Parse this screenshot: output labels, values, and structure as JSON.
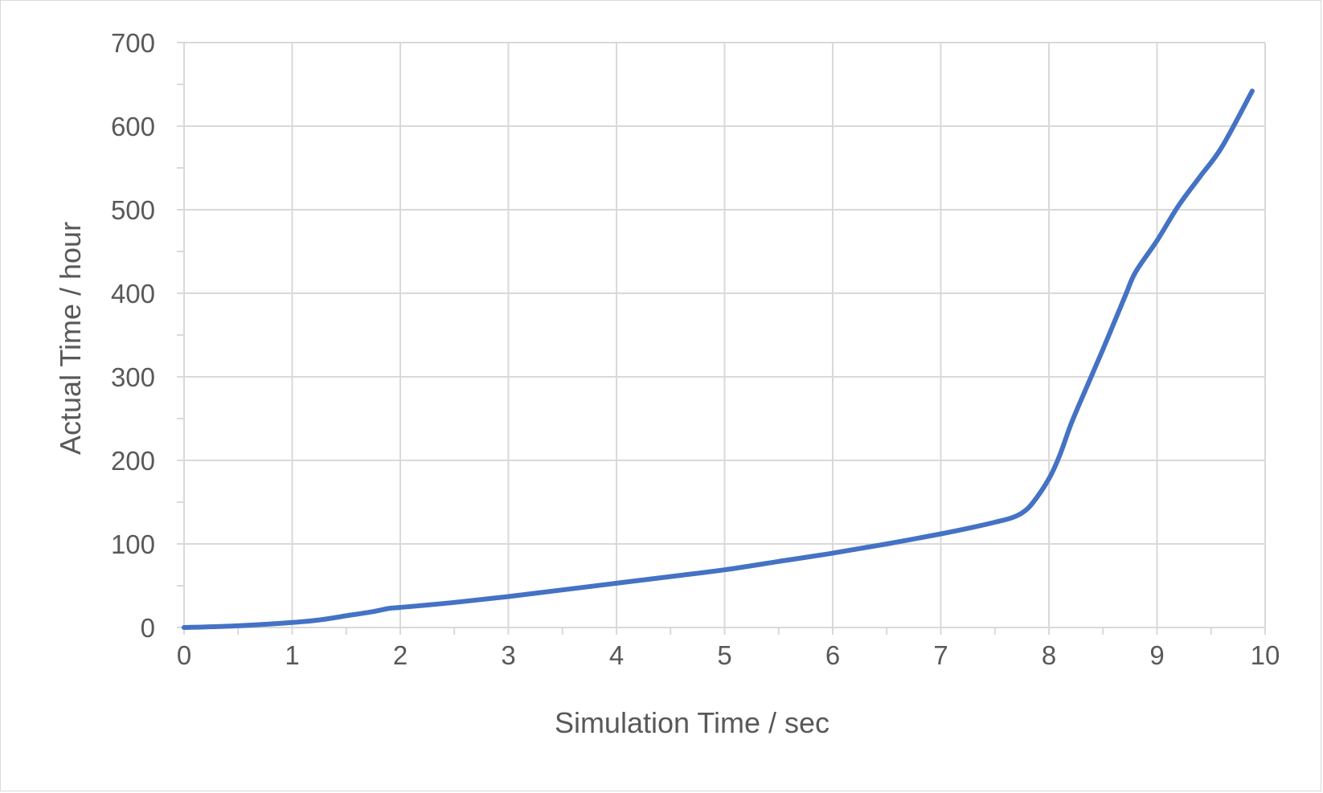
{
  "chart_data": {
    "type": "line",
    "title": "",
    "xlabel": "Simulation Time / sec",
    "ylabel": "Actual Time / hour",
    "xlim": [
      0,
      10
    ],
    "ylim": [
      0,
      700
    ],
    "x_ticks": [
      0,
      1,
      2,
      3,
      4,
      5,
      6,
      7,
      8,
      9,
      10
    ],
    "y_ticks": [
      0,
      100,
      200,
      300,
      400,
      500,
      600,
      700
    ],
    "x_tick_labels": [
      "0",
      "1",
      "2",
      "3",
      "4",
      "5",
      "6",
      "7",
      "8",
      "9",
      "10"
    ],
    "y_tick_labels": [
      "0",
      "100",
      "200",
      "300",
      "400",
      "500",
      "600",
      "700"
    ],
    "grid": true,
    "legend": "none",
    "series": [
      {
        "color": "#4472C4",
        "x": [
          0,
          0.5,
          1.0,
          1.25,
          1.5,
          1.75,
          1.9,
          2.0,
          2.5,
          3.0,
          3.5,
          4.0,
          4.5,
          5.0,
          5.5,
          6.0,
          6.5,
          7.0,
          7.3,
          7.5,
          7.65,
          7.75,
          7.85,
          8.0,
          8.1,
          8.2,
          8.3,
          8.5,
          8.7,
          8.8,
          9.0,
          9.2,
          9.4,
          9.6,
          9.88
        ],
        "y": [
          0,
          2,
          6,
          9,
          14,
          19,
          23,
          24,
          30,
          37,
          45,
          53,
          61,
          69,
          79,
          89,
          100,
          112,
          120,
          126,
          131,
          137,
          149,
          178,
          206,
          242,
          273,
          333,
          395,
          425,
          463,
          505,
          540,
          575,
          642
        ]
      }
    ]
  }
}
